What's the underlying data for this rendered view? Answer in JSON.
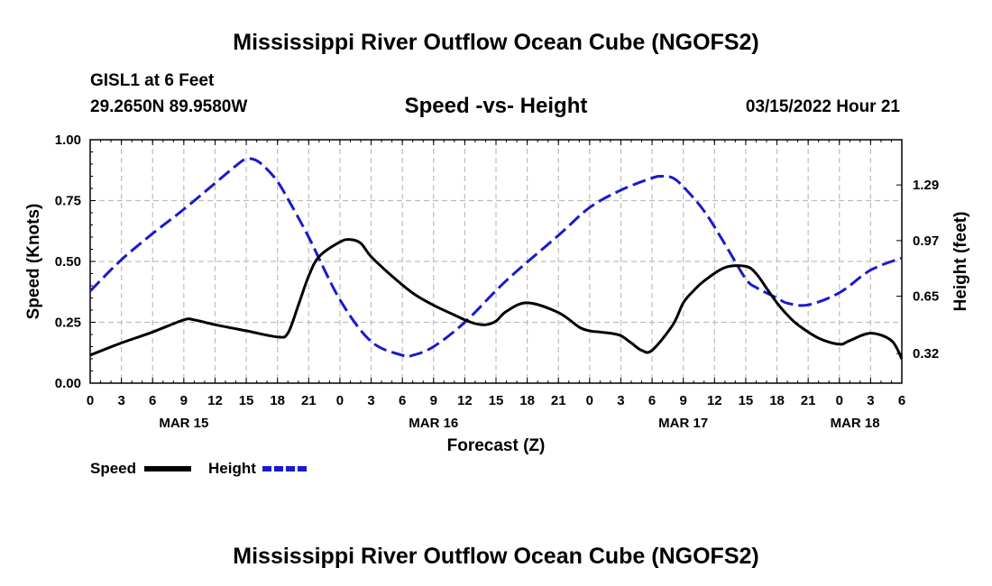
{
  "chart_data": {
    "type": "line",
    "title": "Mississippi River Outflow Ocean Cube (NGOFS2)",
    "station": "GISL1 at 6 Feet",
    "location": "29.2650N  89.9580W",
    "subtitle": "Speed -vs- Height",
    "forecast_time": "03/15/2022 Hour 21",
    "xlabel": "Forecast (Z)",
    "ylabel_left": "Speed (Knots)",
    "ylabel_right": "Height (feet)",
    "x_range_hours": [
      0,
      78
    ],
    "x_tick_labels": [
      "0",
      "3",
      "6",
      "9",
      "12",
      "15",
      "18",
      "21",
      "0",
      "3",
      "6",
      "9",
      "12",
      "15",
      "18",
      "21",
      "0",
      "3",
      "6",
      "9",
      "12",
      "15",
      "18",
      "21",
      "0",
      "3",
      "6"
    ],
    "date_labels": [
      {
        "hour": 9,
        "label": "MAR 15"
      },
      {
        "hour": 33,
        "label": "MAR 16"
      },
      {
        "hour": 57,
        "label": "MAR 17"
      },
      {
        "hour": 73.5,
        "label": "MAR 18"
      }
    ],
    "ylim_left": [
      0,
      1.0
    ],
    "yticks_left": [
      "0.00",
      "0.25",
      "0.50",
      "0.75",
      "1.00"
    ],
    "ylim_right": [
      0.15,
      1.55
    ],
    "yticks_right": [
      "0.32",
      "0.65",
      "0.97",
      "1.29"
    ],
    "grid": true,
    "series": [
      {
        "name": "Speed",
        "axis": "left",
        "color": "#000000",
        "dash": "solid",
        "x": [
          0,
          3,
          6,
          9,
          10,
          12,
          15,
          18,
          19,
          20,
          21,
          22,
          24,
          25,
          26,
          27,
          29,
          31,
          33,
          35,
          36,
          37,
          38,
          39,
          40,
          42,
          45,
          47,
          48,
          49,
          50,
          51,
          52,
          53,
          54,
          56,
          57,
          58,
          59,
          61,
          63,
          64,
          65,
          66,
          67,
          68,
          70,
          72,
          73,
          75,
          77,
          78
        ],
        "y": [
          0.115,
          0.165,
          0.21,
          0.26,
          0.26,
          0.24,
          0.215,
          0.19,
          0.205,
          0.32,
          0.44,
          0.52,
          0.58,
          0.59,
          0.575,
          0.52,
          0.44,
          0.37,
          0.32,
          0.28,
          0.26,
          0.245,
          0.24,
          0.255,
          0.295,
          0.33,
          0.29,
          0.23,
          0.215,
          0.21,
          0.205,
          0.195,
          0.165,
          0.135,
          0.135,
          0.24,
          0.33,
          0.38,
          0.42,
          0.475,
          0.48,
          0.45,
          0.39,
          0.33,
          0.28,
          0.24,
          0.185,
          0.16,
          0.175,
          0.205,
          0.175,
          0.1
        ]
      },
      {
        "name": "Height",
        "axis": "right",
        "color": "#1a1acc",
        "dash": "dashed",
        "x": [
          0,
          3,
          6,
          9,
          12,
          14,
          15,
          16,
          17,
          18,
          19,
          21,
          24,
          27,
          30,
          31,
          33,
          36,
          40,
          45,
          48,
          51,
          54,
          55,
          56,
          57,
          59,
          61,
          63,
          64,
          66,
          67,
          69,
          72,
          75,
          78
        ],
        "y": [
          0.68,
          0.86,
          1.01,
          1.15,
          1.3,
          1.4,
          1.44,
          1.43,
          1.38,
          1.31,
          1.21,
          0.99,
          0.63,
          0.39,
          0.31,
          0.31,
          0.36,
          0.5,
          0.74,
          1.0,
          1.16,
          1.26,
          1.33,
          1.34,
          1.33,
          1.28,
          1.14,
          0.95,
          0.75,
          0.7,
          0.64,
          0.61,
          0.6,
          0.67,
          0.8,
          0.87
        ]
      }
    ],
    "legend": [
      {
        "label": "Speed",
        "color": "#000000",
        "dash": "solid"
      },
      {
        "label": "Height",
        "color": "#1a1acc",
        "dash": "dashed"
      }
    ],
    "repeated_title": "Mississippi River Outflow Ocean Cube (NGOFS2)"
  }
}
